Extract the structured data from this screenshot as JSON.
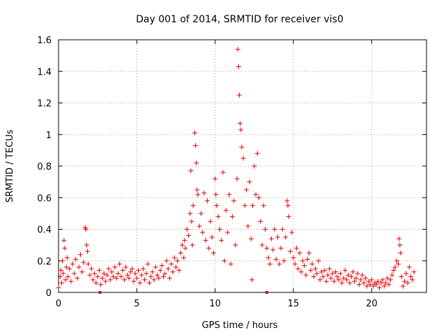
{
  "chart_data": {
    "type": "scatter",
    "title": "Day 001 of 2014, SRMTID for receiver vis0",
    "xlabel": "GPS time / hours",
    "ylabel": "SRMTID / TECUs",
    "xlim": [
      0,
      23.5
    ],
    "ylim": [
      0,
      1.6
    ],
    "x_ticks": [
      0,
      5,
      10,
      15,
      20
    ],
    "x_tick_labels": [
      "0",
      "5",
      "10",
      "15",
      "20"
    ],
    "y_ticks": [
      0,
      0.2,
      0.4,
      0.6,
      0.8,
      1,
      1.2,
      1.4,
      1.6
    ],
    "y_tick_labels": [
      "0",
      "0.2",
      "0.4",
      "0.6",
      "0.8",
      "1",
      "1.2",
      "1.4",
      "1.6"
    ],
    "grid": true,
    "marker": "plus",
    "series": [
      {
        "name": "vis0",
        "color": "#e00000",
        "points": [
          [
            0.0,
            0.03
          ],
          [
            0.1,
            0.1
          ],
          [
            0.15,
            0.14
          ],
          [
            0.2,
            0.06
          ],
          [
            0.25,
            0.2
          ],
          [
            0.3,
            0.12
          ],
          [
            0.35,
            0.33
          ],
          [
            0.4,
            0.28
          ],
          [
            0.45,
            0.08
          ],
          [
            0.5,
            0.16
          ],
          [
            0.55,
            0.22
          ],
          [
            0.6,
            0.1
          ],
          [
            0.7,
            0.15
          ],
          [
            0.8,
            0.07
          ],
          [
            0.9,
            0.18
          ],
          [
            1.0,
            0.12
          ],
          [
            1.1,
            0.21
          ],
          [
            1.2,
            0.09
          ],
          [
            1.3,
            0.16
          ],
          [
            1.4,
            0.24
          ],
          [
            1.5,
            0.13
          ],
          [
            1.6,
            0.19
          ],
          [
            1.7,
            0.41
          ],
          [
            1.75,
            0.4
          ],
          [
            1.8,
            0.3
          ],
          [
            1.85,
            0.26
          ],
          [
            1.9,
            0.18
          ],
          [
            2.0,
            0.11
          ],
          [
            2.1,
            0.15
          ],
          [
            2.2,
            0.08
          ],
          [
            2.3,
            0.12
          ],
          [
            2.4,
            0.06
          ],
          [
            2.5,
            0.1
          ],
          [
            2.6,
            0.14
          ],
          [
            2.7,
            0.05
          ],
          [
            2.8,
            0.09
          ],
          [
            2.9,
            0.12
          ],
          [
            3.0,
            0.07
          ],
          [
            3.1,
            0.11
          ],
          [
            3.2,
            0.15
          ],
          [
            3.3,
            0.08
          ],
          [
            3.4,
            0.13
          ],
          [
            3.5,
            0.1
          ],
          [
            3.6,
            0.16
          ],
          [
            3.7,
            0.09
          ],
          [
            3.8,
            0.12
          ],
          [
            3.9,
            0.18
          ],
          [
            4.0,
            0.1
          ],
          [
            4.1,
            0.14
          ],
          [
            4.2,
            0.08
          ],
          [
            4.3,
            0.16
          ],
          [
            4.4,
            0.11
          ],
          [
            4.5,
            0.09
          ],
          [
            4.6,
            0.13
          ],
          [
            4.7,
            0.15
          ],
          [
            4.8,
            0.07
          ],
          [
            4.9,
            0.12
          ],
          [
            5.0,
            0.09
          ],
          [
            5.1,
            0.14
          ],
          [
            5.2,
            0.06
          ],
          [
            5.3,
            0.11
          ],
          [
            5.4,
            0.15
          ],
          [
            5.5,
            0.08
          ],
          [
            5.6,
            0.12
          ],
          [
            5.7,
            0.18
          ],
          [
            5.8,
            0.06
          ],
          [
            5.9,
            0.1
          ],
          [
            6.0,
            0.13
          ],
          [
            6.1,
            0.08
          ],
          [
            6.2,
            0.16
          ],
          [
            6.3,
            0.11
          ],
          [
            6.4,
            0.09
          ],
          [
            6.5,
            0.14
          ],
          [
            6.6,
            0.17
          ],
          [
            6.7,
            0.1
          ],
          [
            6.8,
            0.12
          ],
          [
            6.9,
            0.2
          ],
          [
            7.0,
            0.15
          ],
          [
            7.1,
            0.09
          ],
          [
            7.2,
            0.18
          ],
          [
            7.3,
            0.13
          ],
          [
            7.4,
            0.22
          ],
          [
            7.5,
            0.16
          ],
          [
            7.6,
            0.2
          ],
          [
            7.7,
            0.14
          ],
          [
            7.8,
            0.25
          ],
          [
            7.9,
            0.3
          ],
          [
            8.0,
            0.22
          ],
          [
            8.05,
            0.33
          ],
          [
            8.1,
            0.28
          ],
          [
            8.2,
            0.4
          ],
          [
            8.3,
            0.36
          ],
          [
            8.4,
            0.5
          ],
          [
            8.45,
            0.77
          ],
          [
            8.5,
            0.45
          ],
          [
            8.55,
            0.3
          ],
          [
            8.6,
            0.55
          ],
          [
            8.7,
            1.01
          ],
          [
            8.75,
            0.93
          ],
          [
            8.8,
            0.82
          ],
          [
            8.85,
            0.65
          ],
          [
            8.9,
            0.62
          ],
          [
            9.0,
            0.42
          ],
          [
            9.1,
            0.5
          ],
          [
            9.2,
            0.38
          ],
          [
            9.3,
            0.63
          ],
          [
            9.4,
            0.33
          ],
          [
            9.5,
            0.58
          ],
          [
            9.6,
            0.28
          ],
          [
            9.7,
            0.45
          ],
          [
            9.8,
            0.35
          ],
          [
            9.9,
            0.25
          ],
          [
            10.0,
            0.72
          ],
          [
            10.05,
            0.62
          ],
          [
            10.1,
            0.55
          ],
          [
            10.2,
            0.48
          ],
          [
            10.3,
            0.4
          ],
          [
            10.4,
            0.33
          ],
          [
            10.5,
            0.76
          ],
          [
            10.6,
            0.2
          ],
          [
            10.7,
            0.52
          ],
          [
            10.8,
            0.38
          ],
          [
            10.9,
            0.62
          ],
          [
            11.0,
            0.18
          ],
          [
            11.1,
            0.48
          ],
          [
            11.2,
            0.58
          ],
          [
            11.3,
            0.3
          ],
          [
            11.4,
            0.72
          ],
          [
            11.45,
            1.54
          ],
          [
            11.5,
            1.43
          ],
          [
            11.55,
            1.25
          ],
          [
            11.6,
            1.07
          ],
          [
            11.65,
            1.03
          ],
          [
            11.7,
            0.92
          ],
          [
            11.8,
            0.85
          ],
          [
            11.9,
            0.55
          ],
          [
            12.0,
            0.65
          ],
          [
            12.1,
            0.42
          ],
          [
            12.2,
            0.7
          ],
          [
            12.3,
            0.34
          ],
          [
            12.35,
            0.08
          ],
          [
            12.4,
            0.55
          ],
          [
            12.5,
            0.8
          ],
          [
            12.6,
            0.62
          ],
          [
            12.7,
            0.88
          ],
          [
            12.8,
            0.6
          ],
          [
            12.9,
            0.45
          ],
          [
            13.0,
            0.3
          ],
          [
            13.1,
            0.55
          ],
          [
            13.2,
            0.4
          ],
          [
            13.3,
            0.28
          ],
          [
            13.4,
            0.22
          ],
          [
            13.5,
            0.18
          ],
          [
            13.6,
            0.34
          ],
          [
            13.7,
            0.27
          ],
          [
            13.8,
            0.4
          ],
          [
            13.9,
            0.21
          ],
          [
            14.0,
            0.35
          ],
          [
            14.1,
            0.18
          ],
          [
            14.2,
            0.28
          ],
          [
            14.3,
            0.4
          ],
          [
            14.4,
            0.2
          ],
          [
            14.5,
            0.35
          ],
          [
            14.6,
            0.58
          ],
          [
            14.65,
            0.55
          ],
          [
            14.7,
            0.48
          ],
          [
            14.8,
            0.26
          ],
          [
            14.9,
            0.38
          ],
          [
            15.0,
            0.22
          ],
          [
            15.1,
            0.18
          ],
          [
            15.2,
            0.28
          ],
          [
            15.3,
            0.15
          ],
          [
            15.4,
            0.25
          ],
          [
            15.5,
            0.13
          ],
          [
            15.6,
            0.2
          ],
          [
            15.7,
            0.17
          ],
          [
            15.8,
            0.11
          ],
          [
            15.9,
            0.21
          ],
          [
            16.0,
            0.25
          ],
          [
            16.1,
            0.14
          ],
          [
            16.2,
            0.18
          ],
          [
            16.3,
            0.1
          ],
          [
            16.4,
            0.15
          ],
          [
            16.5,
            0.12
          ],
          [
            16.6,
            0.2
          ],
          [
            16.7,
            0.08
          ],
          [
            16.8,
            0.13
          ],
          [
            16.9,
            0.1
          ],
          [
            17.0,
            0.14
          ],
          [
            17.1,
            0.07
          ],
          [
            17.2,
            0.11
          ],
          [
            17.3,
            0.15
          ],
          [
            17.4,
            0.09
          ],
          [
            17.5,
            0.12
          ],
          [
            17.6,
            0.07
          ],
          [
            17.7,
            0.13
          ],
          [
            17.8,
            0.1
          ],
          [
            17.9,
            0.08
          ],
          [
            18.0,
            0.12
          ],
          [
            18.1,
            0.06
          ],
          [
            18.2,
            0.09
          ],
          [
            18.3,
            0.14
          ],
          [
            18.4,
            0.08
          ],
          [
            18.5,
            0.11
          ],
          [
            18.6,
            0.06
          ],
          [
            18.7,
            0.1
          ],
          [
            18.8,
            0.13
          ],
          [
            18.9,
            0.07
          ],
          [
            19.0,
            0.09
          ],
          [
            19.1,
            0.12
          ],
          [
            19.2,
            0.05
          ],
          [
            19.3,
            0.08
          ],
          [
            19.4,
            0.11
          ],
          [
            19.5,
            0.06
          ],
          [
            19.6,
            0.09
          ],
          [
            19.7,
            0.04
          ],
          [
            19.8,
            0.07
          ],
          [
            19.9,
            0.05
          ],
          [
            20.0,
            0.08
          ],
          [
            20.1,
            0.04
          ],
          [
            20.2,
            0.06
          ],
          [
            20.3,
            0.05
          ],
          [
            20.4,
            0.07
          ],
          [
            20.5,
            0.03
          ],
          [
            20.6,
            0.06
          ],
          [
            20.7,
            0.08
          ],
          [
            20.8,
            0.04
          ],
          [
            20.9,
            0.06
          ],
          [
            21.0,
            0.09
          ],
          [
            21.1,
            0.05
          ],
          [
            21.2,
            0.08
          ],
          [
            21.3,
            0.11
          ],
          [
            21.4,
            0.14
          ],
          [
            21.5,
            0.16
          ],
          [
            21.6,
            0.2
          ],
          [
            21.7,
            0.18
          ],
          [
            21.75,
            0.34
          ],
          [
            21.8,
            0.3
          ],
          [
            21.85,
            0.25
          ],
          [
            21.9,
            0.1
          ],
          [
            22.0,
            0.04
          ],
          [
            22.1,
            0.07
          ],
          [
            22.2,
            0.12
          ],
          [
            22.3,
            0.06
          ],
          [
            22.4,
            0.16
          ],
          [
            22.5,
            0.1
          ],
          [
            22.6,
            0.08
          ],
          [
            22.7,
            0.13
          ]
        ]
      }
    ],
    "annotations": [
      {
        "text": "square marker on x-axis",
        "x": 2.65,
        "y": 0
      },
      {
        "text": "square marker on x-axis",
        "x": 13.3,
        "y": 0
      }
    ]
  }
}
